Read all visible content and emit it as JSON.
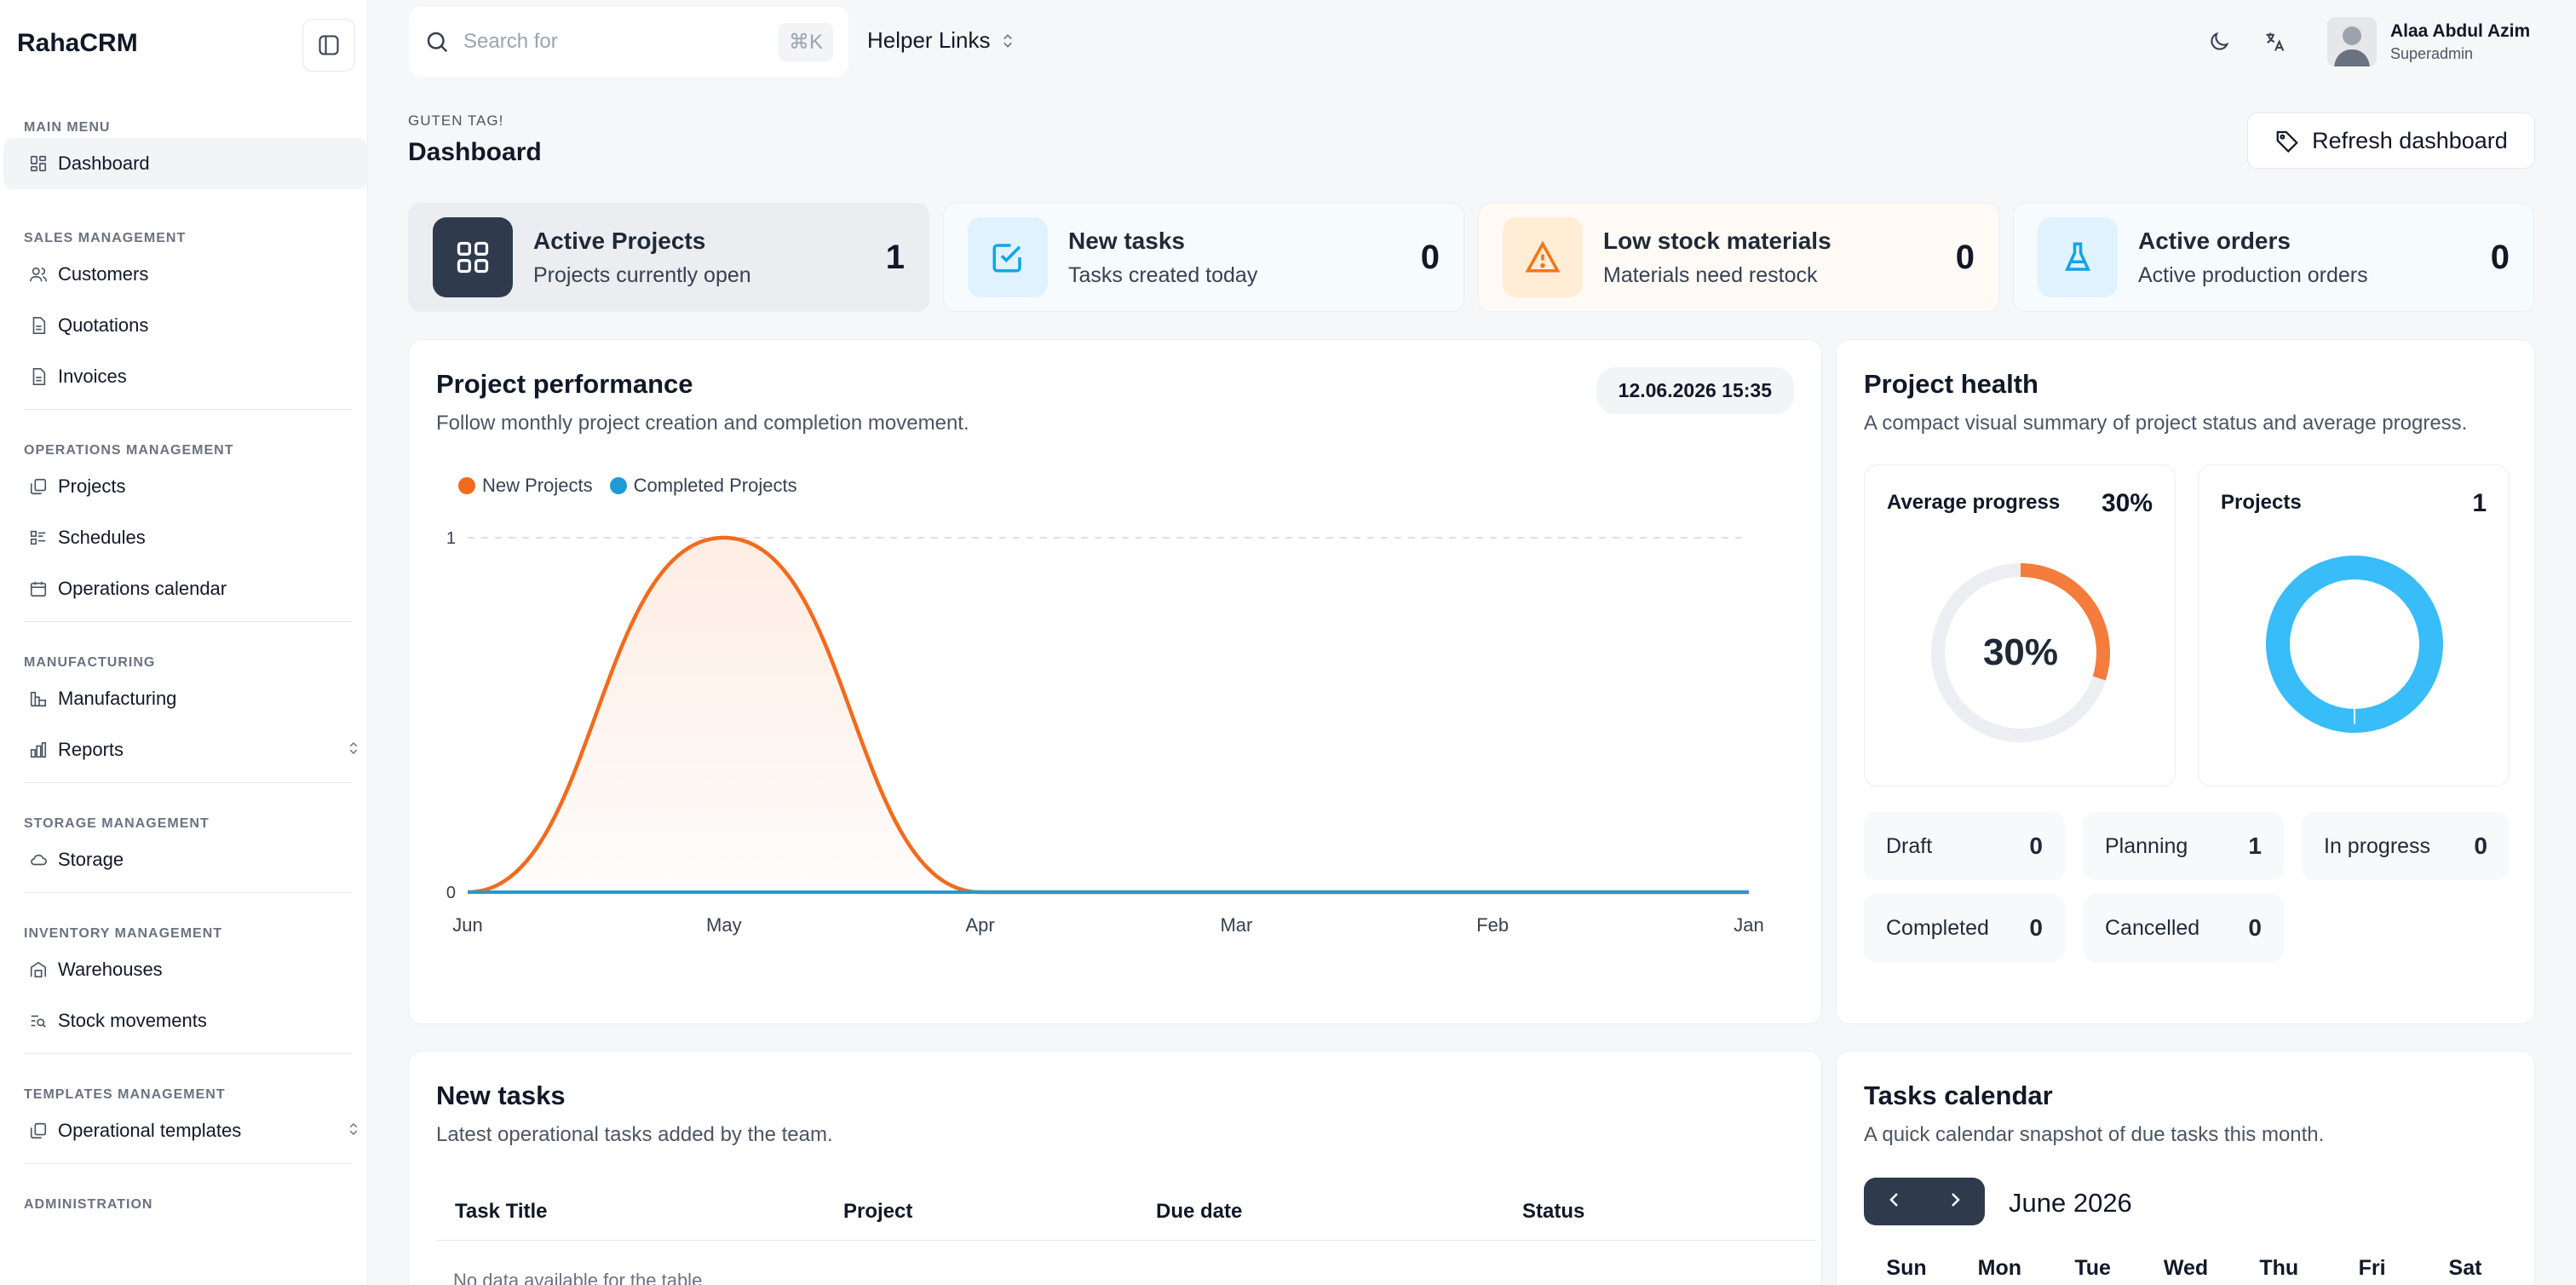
{
  "app": {
    "brand": "RahaCRM"
  },
  "sidebar": {
    "sections": [
      {
        "heading": "MAIN MENU",
        "items": [
          {
            "label": "Dashboard",
            "icon": "grid-icon",
            "active": true
          }
        ]
      },
      {
        "heading": "SALES MANAGEMENT",
        "items": [
          {
            "label": "Customers",
            "icon": "users-icon"
          },
          {
            "label": "Quotations",
            "icon": "document-icon"
          },
          {
            "label": "Invoices",
            "icon": "document-icon"
          }
        ]
      },
      {
        "heading": "OPERATIONS MANAGEMENT",
        "items": [
          {
            "label": "Projects",
            "icon": "copy-icon"
          },
          {
            "label": "Schedules",
            "icon": "list-icon"
          },
          {
            "label": "Operations calendar",
            "icon": "calendar-icon"
          }
        ]
      },
      {
        "heading": "MANUFACTURING",
        "items": [
          {
            "label": "Manufacturing",
            "icon": "factory-icon"
          },
          {
            "label": "Reports",
            "icon": "bar-chart-icon",
            "expandable": true
          }
        ]
      },
      {
        "heading": "STORAGE MANAGEMENT",
        "items": [
          {
            "label": "Storage",
            "icon": "cloud-icon"
          }
        ]
      },
      {
        "heading": "INVENTORY MANAGEMENT",
        "items": [
          {
            "label": "Warehouses",
            "icon": "warehouse-icon"
          },
          {
            "label": "Stock movements",
            "icon": "search-list-icon"
          }
        ]
      },
      {
        "heading": "TEMPLATES MANAGEMENT",
        "items": [
          {
            "label": "Operational templates",
            "icon": "copy-icon",
            "expandable": true
          }
        ]
      },
      {
        "heading": "ADMINISTRATION",
        "items": []
      }
    ]
  },
  "topbar": {
    "search_placeholder": "Search for",
    "search_shortcut": "⌘K",
    "helper_links": "Helper Links",
    "user": {
      "name": "Alaa Abdul Azim",
      "role": "Superadmin"
    }
  },
  "header": {
    "greeting": "GUTEN TAG!",
    "title": "Dashboard",
    "refresh_label": "Refresh dashboard"
  },
  "stats": [
    {
      "title": "Active Projects",
      "subtitle": "Projects currently open",
      "value": "1",
      "icon": "grid-icon",
      "color": "#2f3b4c"
    },
    {
      "title": "New tasks",
      "subtitle": "Tasks created today",
      "value": "0",
      "icon": "check-square-icon",
      "color": "#0ea5e9"
    },
    {
      "title": "Low stock materials",
      "subtitle": "Materials need restock",
      "value": "0",
      "icon": "warning-icon",
      "color": "#f97316"
    },
    {
      "title": "Active orders",
      "subtitle": "Active production orders",
      "value": "0",
      "icon": "flask-icon",
      "color": "#0ea5e9"
    }
  ],
  "performance": {
    "title": "Project performance",
    "subtitle": "Follow monthly project creation and completion movement.",
    "date": "12.06.2026 15:35",
    "chart_data": {
      "type": "area",
      "categories": [
        "Jun",
        "May",
        "Apr",
        "Mar",
        "Feb",
        "Jan"
      ],
      "series": [
        {
          "name": "New Projects",
          "values": [
            0,
            1,
            0,
            0,
            0,
            0
          ],
          "color": "#f26b1d"
        },
        {
          "name": "Completed Projects",
          "values": [
            0,
            0,
            0,
            0,
            0,
            0
          ],
          "color": "#1e9bd7"
        }
      ],
      "yticks": [
        "1",
        "0"
      ],
      "ylim": [
        0,
        1
      ]
    }
  },
  "health": {
    "title": "Project health",
    "subtitle": "A compact visual summary of project status and average progress.",
    "avg_label": "Average progress",
    "avg_value": "30%",
    "avg_center": "30%",
    "avg_fraction": 0.3,
    "projects_label": "Projects",
    "projects_value": "1",
    "statuses": [
      {
        "label": "Draft",
        "value": "0"
      },
      {
        "label": "Planning",
        "value": "1"
      },
      {
        "label": "In progress",
        "value": "0"
      },
      {
        "label": "Completed",
        "value": "0"
      },
      {
        "label": "Cancelled",
        "value": "0"
      }
    ]
  },
  "tasks": {
    "title": "New tasks",
    "subtitle": "Latest operational tasks added by the team.",
    "columns": [
      "Task Title",
      "Project",
      "Due date",
      "Status"
    ],
    "empty": "No data available for the table"
  },
  "calendar": {
    "title": "Tasks calendar",
    "subtitle": "A quick calendar snapshot of due tasks this month.",
    "month": "June 2026",
    "days": [
      "Sun",
      "Mon",
      "Tue",
      "Wed",
      "Thu",
      "Fri",
      "Sat"
    ]
  }
}
